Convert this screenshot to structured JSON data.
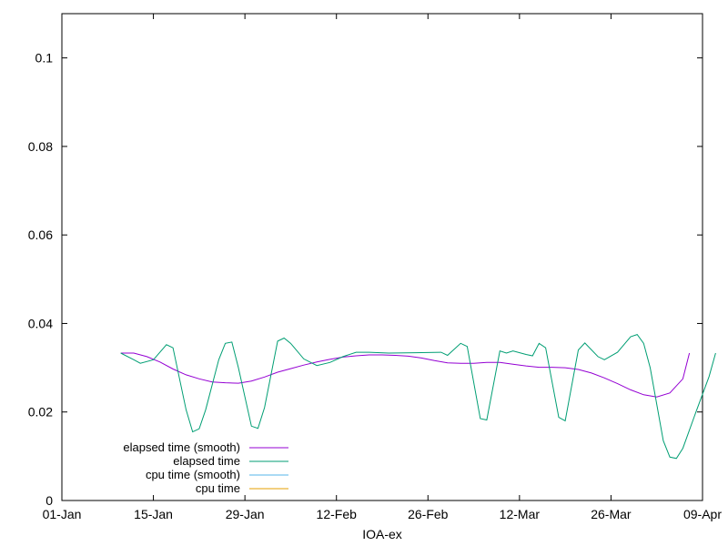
{
  "chart_data": {
    "type": "line",
    "title": "",
    "xlabel": "IOA-ex",
    "ylabel": "",
    "x_type": "date",
    "xlim": [
      "2025-01-01",
      "2025-04-09"
    ],
    "ylim": [
      0,
      0.11
    ],
    "x_ticks": [
      "01-Jan",
      "15-Jan",
      "29-Jan",
      "12-Feb",
      "26-Feb",
      "12-Mar",
      "26-Mar",
      "09-Apr"
    ],
    "y_ticks": [
      "0",
      "0.02",
      "0.04",
      "0.06",
      "0.08",
      "0.1"
    ],
    "grid": false,
    "legend_position": "bottom-left",
    "series": [
      {
        "name": "elapsed time (smooth)",
        "color": "#9400d3",
        "points": [
          [
            "2025-01-10",
            0.0333
          ],
          [
            "2025-01-12",
            0.0333
          ],
          [
            "2025-01-14",
            0.0325
          ],
          [
            "2025-01-16",
            0.0313
          ],
          [
            "2025-01-18",
            0.0297
          ],
          [
            "2025-01-20",
            0.0284
          ],
          [
            "2025-01-22",
            0.0275
          ],
          [
            "2025-01-24",
            0.0268
          ],
          [
            "2025-01-26",
            0.0266
          ],
          [
            "2025-01-28",
            0.0265
          ],
          [
            "2025-01-30",
            0.027
          ],
          [
            "2025-02-01",
            0.0279
          ],
          [
            "2025-02-03",
            0.029
          ],
          [
            "2025-02-05",
            0.0298
          ],
          [
            "2025-02-07",
            0.0306
          ],
          [
            "2025-02-09",
            0.0313
          ],
          [
            "2025-02-11",
            0.0319
          ],
          [
            "2025-02-13",
            0.0324
          ],
          [
            "2025-02-15",
            0.0327
          ],
          [
            "2025-02-17",
            0.0329
          ],
          [
            "2025-02-19",
            0.0329
          ],
          [
            "2025-02-21",
            0.0328
          ],
          [
            "2025-02-23",
            0.0326
          ],
          [
            "2025-02-25",
            0.0322
          ],
          [
            "2025-02-27",
            0.0316
          ],
          [
            "2025-03-01",
            0.0311
          ],
          [
            "2025-03-03",
            0.031
          ],
          [
            "2025-03-05",
            0.031
          ],
          [
            "2025-03-07",
            0.0312
          ],
          [
            "2025-03-09",
            0.0312
          ],
          [
            "2025-03-11",
            0.0308
          ],
          [
            "2025-03-13",
            0.0304
          ],
          [
            "2025-03-15",
            0.0301
          ],
          [
            "2025-03-17",
            0.0301
          ],
          [
            "2025-03-19",
            0.03
          ],
          [
            "2025-03-21",
            0.0296
          ],
          [
            "2025-03-23",
            0.0288
          ],
          [
            "2025-03-25",
            0.0277
          ],
          [
            "2025-03-27",
            0.0264
          ],
          [
            "2025-03-29",
            0.025
          ],
          [
            "2025-03-31",
            0.0239
          ],
          [
            "2025-04-02",
            0.0234
          ],
          [
            "2025-04-04",
            0.0243
          ],
          [
            "2025-04-06",
            0.0275
          ],
          [
            "2025-04-07",
            0.0333
          ]
        ]
      },
      {
        "name": "elapsed time",
        "color": "#009e73",
        "points": [
          [
            "2025-01-10",
            0.0333
          ],
          [
            "2025-01-12",
            0.0318
          ],
          [
            "2025-01-13",
            0.031
          ],
          [
            "2025-01-15",
            0.0318
          ],
          [
            "2025-01-17",
            0.0352
          ],
          [
            "2025-01-18",
            0.0345
          ],
          [
            "2025-01-20",
            0.0205
          ],
          [
            "2025-01-21",
            0.0155
          ],
          [
            "2025-01-22",
            0.0162
          ],
          [
            "2025-01-23",
            0.0205
          ],
          [
            "2025-01-25",
            0.0318
          ],
          [
            "2025-01-26",
            0.0355
          ],
          [
            "2025-01-27",
            0.0358
          ],
          [
            "2025-01-28",
            0.03
          ],
          [
            "2025-01-30",
            0.0168
          ],
          [
            "2025-01-31",
            0.0163
          ],
          [
            "2025-02-01",
            0.021
          ],
          [
            "2025-02-03",
            0.036
          ],
          [
            "2025-02-04",
            0.0367
          ],
          [
            "2025-02-05",
            0.0355
          ],
          [
            "2025-02-07",
            0.032
          ],
          [
            "2025-02-09",
            0.0305
          ],
          [
            "2025-02-11",
            0.0312
          ],
          [
            "2025-02-13",
            0.0325
          ],
          [
            "2025-02-15",
            0.0335
          ],
          [
            "2025-02-17",
            0.0335
          ],
          [
            "2025-02-20",
            0.0333
          ],
          [
            "2025-02-24",
            0.0334
          ],
          [
            "2025-02-28",
            0.0335
          ],
          [
            "2025-03-01",
            0.0328
          ],
          [
            "2025-03-03",
            0.0355
          ],
          [
            "2025-03-04",
            0.0348
          ],
          [
            "2025-03-06",
            0.0185
          ],
          [
            "2025-03-07",
            0.0182
          ],
          [
            "2025-03-09",
            0.0338
          ],
          [
            "2025-03-10",
            0.0333
          ],
          [
            "2025-03-11",
            0.0338
          ],
          [
            "2025-03-13",
            0.033
          ],
          [
            "2025-03-14",
            0.0327
          ],
          [
            "2025-03-15",
            0.0355
          ],
          [
            "2025-03-16",
            0.0345
          ],
          [
            "2025-03-18",
            0.0188
          ],
          [
            "2025-03-19",
            0.018
          ],
          [
            "2025-03-21",
            0.034
          ],
          [
            "2025-03-22",
            0.0356
          ],
          [
            "2025-03-24",
            0.0325
          ],
          [
            "2025-03-25",
            0.0318
          ],
          [
            "2025-03-27",
            0.0335
          ],
          [
            "2025-03-29",
            0.037
          ],
          [
            "2025-03-30",
            0.0375
          ],
          [
            "2025-03-31",
            0.0355
          ],
          [
            "2025-04-01",
            0.03
          ],
          [
            "2025-04-03",
            0.0135
          ],
          [
            "2025-04-04",
            0.0098
          ],
          [
            "2025-04-05",
            0.0095
          ],
          [
            "2025-04-06",
            0.0118
          ],
          [
            "2025-04-08",
            0.02
          ],
          [
            "2025-04-10",
            0.028
          ],
          [
            "2025-04-11",
            0.0333
          ]
        ]
      },
      {
        "name": "cpu time (smooth)",
        "color": "#56b4e9",
        "points": []
      },
      {
        "name": "cpu time",
        "color": "#e69f00",
        "points": []
      }
    ]
  }
}
